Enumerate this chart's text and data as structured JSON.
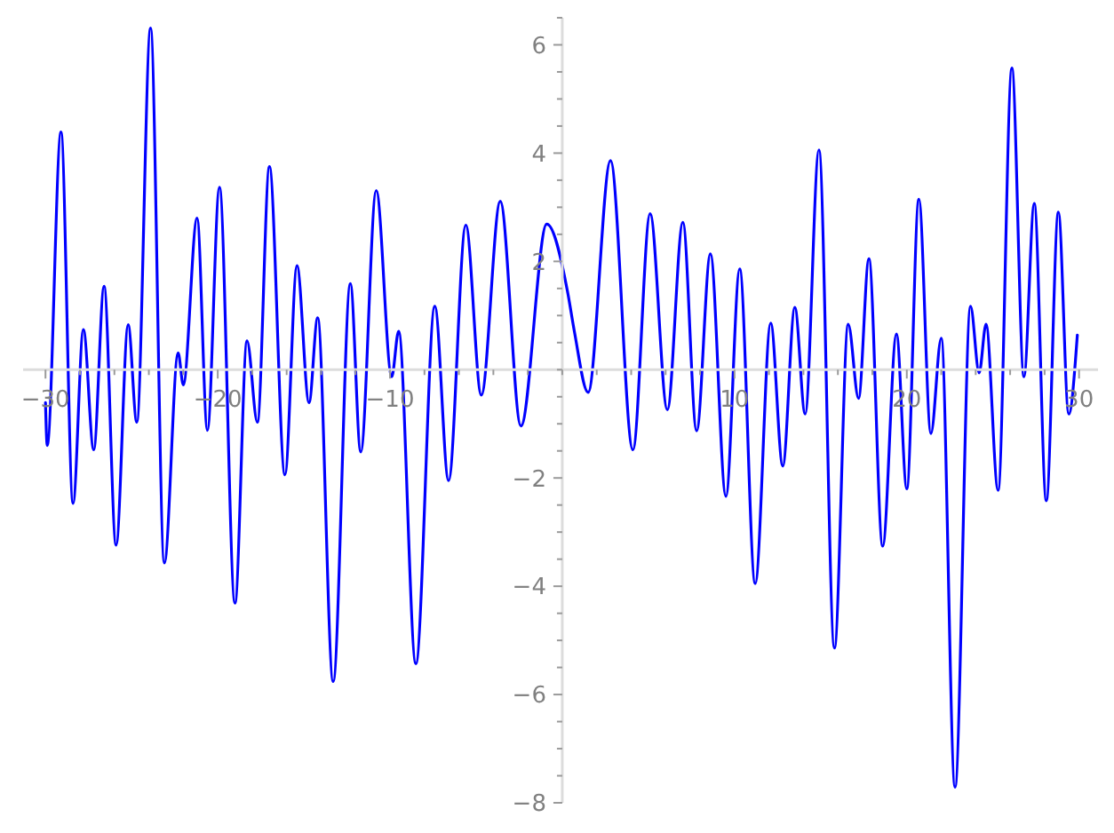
{
  "chart_data": {
    "type": "line",
    "x": [
      -30.0,
      -29.9,
      -29.1,
      -28.4,
      -27.8,
      -27.2,
      -26.6,
      -25.9,
      -25.2,
      -24.7,
      -23.9,
      -23.1,
      -22.3,
      -22.0,
      -21.2,
      -20.6,
      -19.9,
      -19.0,
      -18.3,
      -17.7,
      -17.0,
      -16.1,
      -15.4,
      -14.7,
      -14.2,
      -13.3,
      -12.3,
      -11.7,
      -10.8,
      -9.9,
      -9.5,
      -8.5,
      -7.4,
      -6.6,
      -5.6,
      -4.7,
      -3.6,
      -2.4,
      -0.9,
      0.3,
      0.7,
      1.5,
      2.8,
      4.1,
      5.1,
      6.1,
      7.0,
      7.8,
      8.6,
      9.5,
      10.3,
      11.2,
      12.1,
      12.8,
      13.5,
      14.1,
      14.9,
      15.8,
      16.6,
      17.2,
      17.8,
      18.6,
      19.4,
      20.0,
      20.7,
      21.4,
      22.0,
      22.8,
      23.7,
      24.2,
      24.6,
      25.3,
      26.1,
      26.8,
      27.4,
      28.1,
      28.8,
      29.4,
      29.9
    ],
    "series": [
      {
        "color": "#0000ff",
        "values": [
          -0.61,
          -1.4,
          4.39,
          -2.47,
          0.74,
          -1.48,
          1.54,
          -3.24,
          0.83,
          -0.97,
          6.31,
          -3.57,
          0.31,
          -0.28,
          2.8,
          -1.12,
          3.37,
          -4.31,
          0.53,
          -0.97,
          3.75,
          -1.94,
          1.92,
          -0.61,
          0.96,
          -5.76,
          1.59,
          -1.52,
          3.31,
          -0.13,
          0.71,
          -5.43,
          1.17,
          -2.05,
          2.67,
          -0.47,
          3.11,
          -1.04,
          2.69,
          1.45,
          0.71,
          -0.42,
          3.86,
          -1.48,
          2.88,
          -0.74,
          2.72,
          -1.13,
          2.14,
          -2.34,
          1.86,
          -3.95,
          0.86,
          -1.78,
          1.15,
          -0.82,
          4.06,
          -5.14,
          0.84,
          -0.53,
          2.05,
          -3.26,
          0.66,
          -2.2,
          3.15,
          -1.18,
          0.58,
          -7.71,
          1.17,
          -0.06,
          0.84,
          -2.23,
          5.57,
          -0.13,
          3.07,
          -2.42,
          2.91,
          -0.82,
          0.64
        ]
      }
    ],
    "xlim": [
      -31.3,
      31.1
    ],
    "ylim": [
      -8,
      6.5
    ],
    "xticks": [
      {
        "value": -30,
        "label": "−30"
      },
      {
        "value": -28,
        "label": null
      },
      {
        "value": -26,
        "label": null
      },
      {
        "value": -24,
        "label": null
      },
      {
        "value": -22,
        "label": null
      },
      {
        "value": -20,
        "label": "−20"
      },
      {
        "value": -18,
        "label": null
      },
      {
        "value": -16,
        "label": null
      },
      {
        "value": -14,
        "label": null
      },
      {
        "value": -12,
        "label": null
      },
      {
        "value": -10,
        "label": "−10"
      },
      {
        "value": -8,
        "label": null
      },
      {
        "value": -6,
        "label": null
      },
      {
        "value": -4,
        "label": null
      },
      {
        "value": -2,
        "label": null
      },
      {
        "value": 0,
        "label": null
      },
      {
        "value": 2,
        "label": null
      },
      {
        "value": 4,
        "label": null
      },
      {
        "value": 6,
        "label": null
      },
      {
        "value": 8,
        "label": null
      },
      10,
      {
        "value": 12,
        "label": null
      },
      {
        "value": 14,
        "label": null
      },
      {
        "value": 16,
        "label": null
      },
      {
        "value": 18,
        "label": null
      },
      20,
      {
        "value": 22,
        "label": null
      },
      {
        "value": 24,
        "label": null
      },
      {
        "value": 26,
        "label": null
      },
      {
        "value": 28,
        "label": null
      },
      30
    ],
    "yticks": [
      {
        "value": -8,
        "label": "−8"
      },
      {
        "value": -7.5,
        "label": null
      },
      {
        "value": -7,
        "label": null
      },
      {
        "value": -6.5,
        "label": null
      },
      {
        "value": -6,
        "label": "−6"
      },
      {
        "value": -5.5,
        "label": null
      },
      {
        "value": -5,
        "label": null
      },
      {
        "value": -4.5,
        "label": null
      },
      {
        "value": -4,
        "label": "−4"
      },
      {
        "value": -3.5,
        "label": null
      },
      {
        "value": -3,
        "label": null
      },
      {
        "value": -2.5,
        "label": null
      },
      {
        "value": -2,
        "label": "−2"
      },
      {
        "value": -1.5,
        "label": null
      },
      {
        "value": -1,
        "label": null
      },
      {
        "value": -0.5,
        "label": null
      },
      {
        "value": 0,
        "label": null
      },
      {
        "value": 0.5,
        "label": null
      },
      {
        "value": 1,
        "label": null
      },
      {
        "value": 1.5,
        "label": null
      },
      2,
      {
        "value": 2.5,
        "label": null
      },
      {
        "value": 3,
        "label": null
      },
      {
        "value": 3.5,
        "label": null
      },
      4,
      {
        "value": 4.5,
        "label": null
      },
      {
        "value": 5,
        "label": null
      },
      {
        "value": 5.5,
        "label": null
      },
      6,
      {
        "value": 6.5,
        "label": null
      }
    ]
  }
}
